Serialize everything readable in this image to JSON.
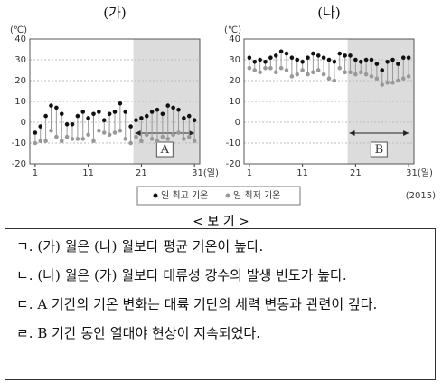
{
  "chart_data": [
    {
      "type": "range-dot",
      "title": "(가)",
      "y_unit": "(℃)",
      "x": [
        1,
        2,
        3,
        4,
        5,
        6,
        7,
        8,
        9,
        10,
        11,
        12,
        13,
        14,
        15,
        16,
        17,
        18,
        19,
        20,
        21,
        22,
        23,
        24,
        25,
        26,
        27,
        28,
        29,
        30,
        31
      ],
      "xlim": [
        0,
        32
      ],
      "xticks": [
        1,
        11,
        21,
        {
          "value": 31,
          "label": "31(일)"
        }
      ],
      "ylim": [
        -20,
        40
      ],
      "yticks": [
        40,
        30,
        20,
        10,
        0,
        -10,
        -20
      ],
      "grid": true,
      "shade": {
        "from": 19.5,
        "to": 32,
        "label": "A"
      },
      "series": [
        {
          "name": "일 최고 기온",
          "color": "#111111",
          "values": [
            -5,
            -2,
            3,
            8,
            7,
            4,
            -1,
            -1,
            3,
            5,
            2,
            4,
            5,
            1,
            4,
            5,
            9,
            5,
            -2,
            1,
            2,
            3,
            5,
            6,
            4,
            8,
            7,
            6,
            2,
            3,
            1
          ]
        },
        {
          "name": "일 최저 기온",
          "color": "#999999",
          "values": [
            -10,
            -9,
            -9,
            -4,
            -7,
            -9,
            -7,
            -8,
            -8,
            -8,
            -6,
            -9,
            -4,
            -5,
            -6,
            -5,
            -4,
            -8,
            -10,
            -7,
            -9,
            -6,
            -8,
            -9,
            -7,
            -8,
            -6,
            -5,
            -8,
            -7,
            -9
          ]
        }
      ]
    },
    {
      "type": "range-dot",
      "title": "(나)",
      "y_unit": "(℃)",
      "x": [
        1,
        2,
        3,
        4,
        5,
        6,
        7,
        8,
        9,
        10,
        11,
        12,
        13,
        14,
        15,
        16,
        17,
        18,
        19,
        20,
        21,
        22,
        23,
        24,
        25,
        26,
        27,
        28,
        29,
        30,
        31
      ],
      "xlim": [
        0,
        32
      ],
      "xticks": [
        1,
        11,
        21,
        {
          "value": 31,
          "label": "31(일)"
        }
      ],
      "ylim": [
        -20,
        40
      ],
      "yticks": [
        40,
        30,
        20,
        10,
        0,
        -10,
        -20
      ],
      "grid": true,
      "shade": {
        "from": 19.5,
        "to": 32,
        "label": "B"
      },
      "series": [
        {
          "name": "일 최고 기온",
          "color": "#111111",
          "values": [
            31,
            29,
            30,
            29,
            31,
            32,
            34,
            33,
            31,
            30,
            29,
            31,
            33,
            32,
            31,
            30,
            29,
            33,
            32,
            32,
            30,
            29,
            30,
            30,
            28,
            25,
            29,
            30,
            28,
            31,
            31
          ]
        },
        {
          "name": "일 최저 기온",
          "color": "#999999",
          "values": [
            26,
            25,
            24,
            26,
            26,
            24,
            26,
            25,
            22,
            23,
            25,
            23,
            24,
            25,
            23,
            21,
            20,
            26,
            24,
            24,
            23,
            24,
            23,
            22,
            21,
            18,
            19,
            19,
            20,
            21,
            22
          ]
        }
      ]
    }
  ],
  "year_note": "(2015)",
  "box": {
    "title": "< 보 기 >",
    "items": [
      "ㄱ. (가) 월은 (나) 월보다 평균 기온이 높다.",
      "ㄴ. (나) 월은 (가) 월보다 대류성 강수의 발생 빈도가 높다.",
      "ㄷ. A 기간의 기온 변화는 대륙 기단의 세력 변동과 관련이 깊다.",
      "ㄹ. B 기간 동안 열대야 현상이 지속되었다."
    ]
  }
}
